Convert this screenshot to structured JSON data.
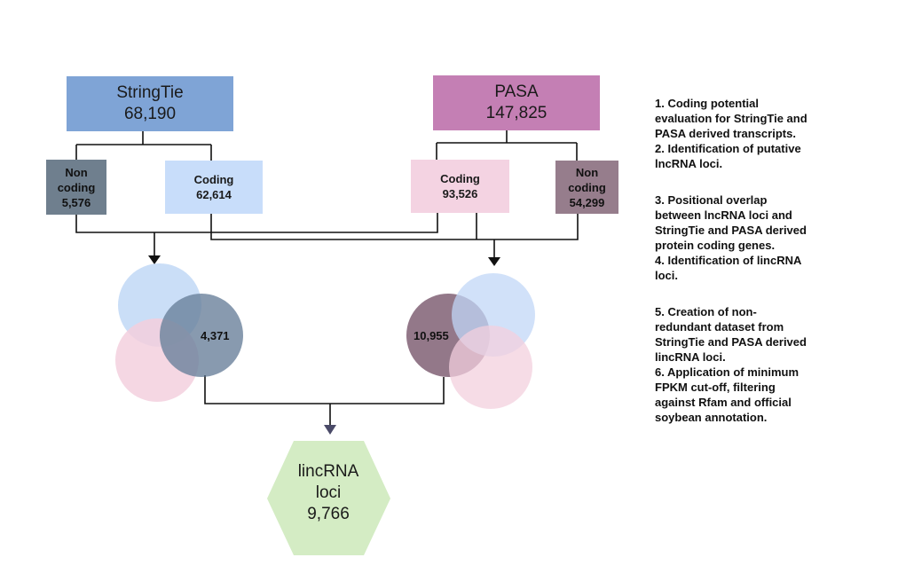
{
  "stringtie": {
    "name": "StringTie",
    "count": "68,190"
  },
  "pasa": {
    "name": "PASA",
    "count": "147,825"
  },
  "left_noncoding": {
    "line1": "Non",
    "line2": "coding",
    "count": "5,576"
  },
  "left_coding": {
    "label": "Coding",
    "count": "62,614"
  },
  "right_coding": {
    "label": "Coding",
    "count": "93,526"
  },
  "right_noncoding": {
    "line1": "Non",
    "line2": "coding",
    "count": "54,299"
  },
  "venn_left": {
    "value": "4,371"
  },
  "venn_right": {
    "value": "10,955"
  },
  "result": {
    "line1": "lincRNA",
    "line2": "loci",
    "count": "9,766"
  },
  "notes": {
    "block1": "1. Coding potential\nevaluation for StringTie and\nPASA derived transcripts.\n2. Identification of putative\nlncRNA loci.",
    "block2": "3. Positional overlap\nbetween lncRNA loci and\nStringTie and PASA derived\nprotein coding genes.\n4. Identification of lincRNA\nloci.",
    "block3": "5. Creation of non-\nredundant dataset from\nStringTie and PASA derived\nlincRNA loci.\n6. Application of minimum\nFPKM cut-off, filtering\nagainst Rfam and official\nsoybean annotation."
  },
  "colors": {
    "stringtie": "#7fa4d6",
    "pasa": "#c47fb4",
    "noncoding_left": "#6f7f8e",
    "coding_left": "#c8ddfa",
    "coding_right": "#f4d3e2",
    "noncoding_right": "#967d8c",
    "hexagon": "#d4ecc4"
  }
}
